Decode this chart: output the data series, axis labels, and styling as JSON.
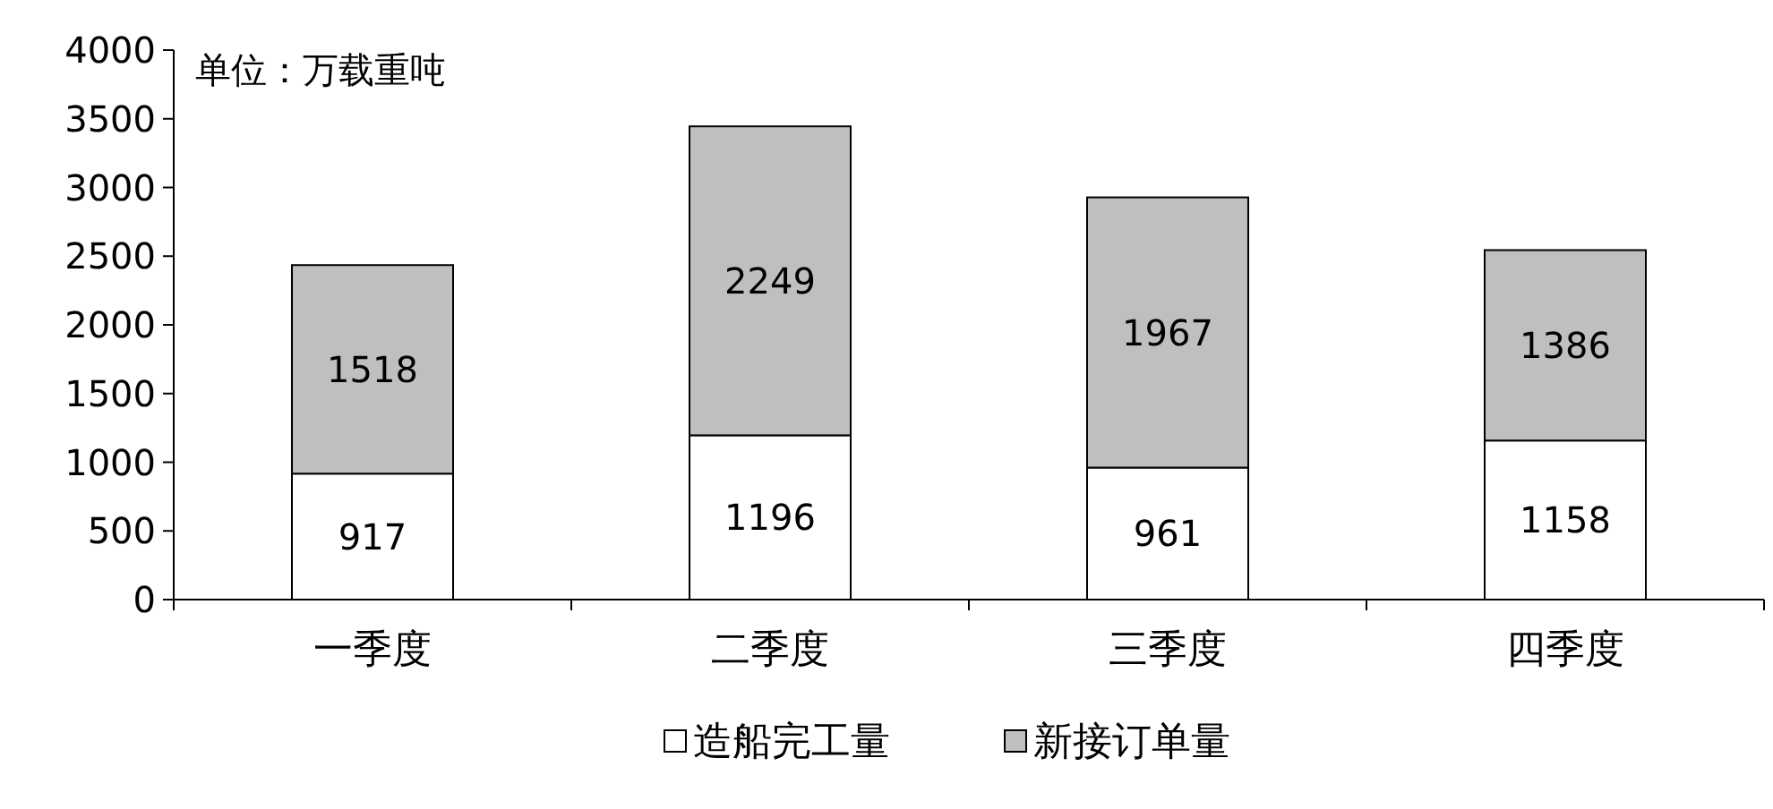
{
  "chart_data": {
    "type": "bar",
    "stacked": true,
    "categories": [
      "一季度",
      "二季度",
      "三季度",
      "四季度"
    ],
    "series": [
      {
        "name": "造船完工量",
        "color": "#ffffff",
        "values": [
          917,
          1196,
          961,
          1158
        ]
      },
      {
        "name": "新接订单量",
        "color": "#bfbfbf",
        "values": [
          1518,
          2249,
          1967,
          1386
        ]
      }
    ],
    "ylim": [
      0,
      4000
    ],
    "yticks": [
      0,
      500,
      1000,
      1500,
      2000,
      2500,
      3000,
      3500,
      4000
    ],
    "annotations": [
      "单位：万载重吨"
    ],
    "data_labels": true,
    "legend": "bottom",
    "grid": false
  }
}
